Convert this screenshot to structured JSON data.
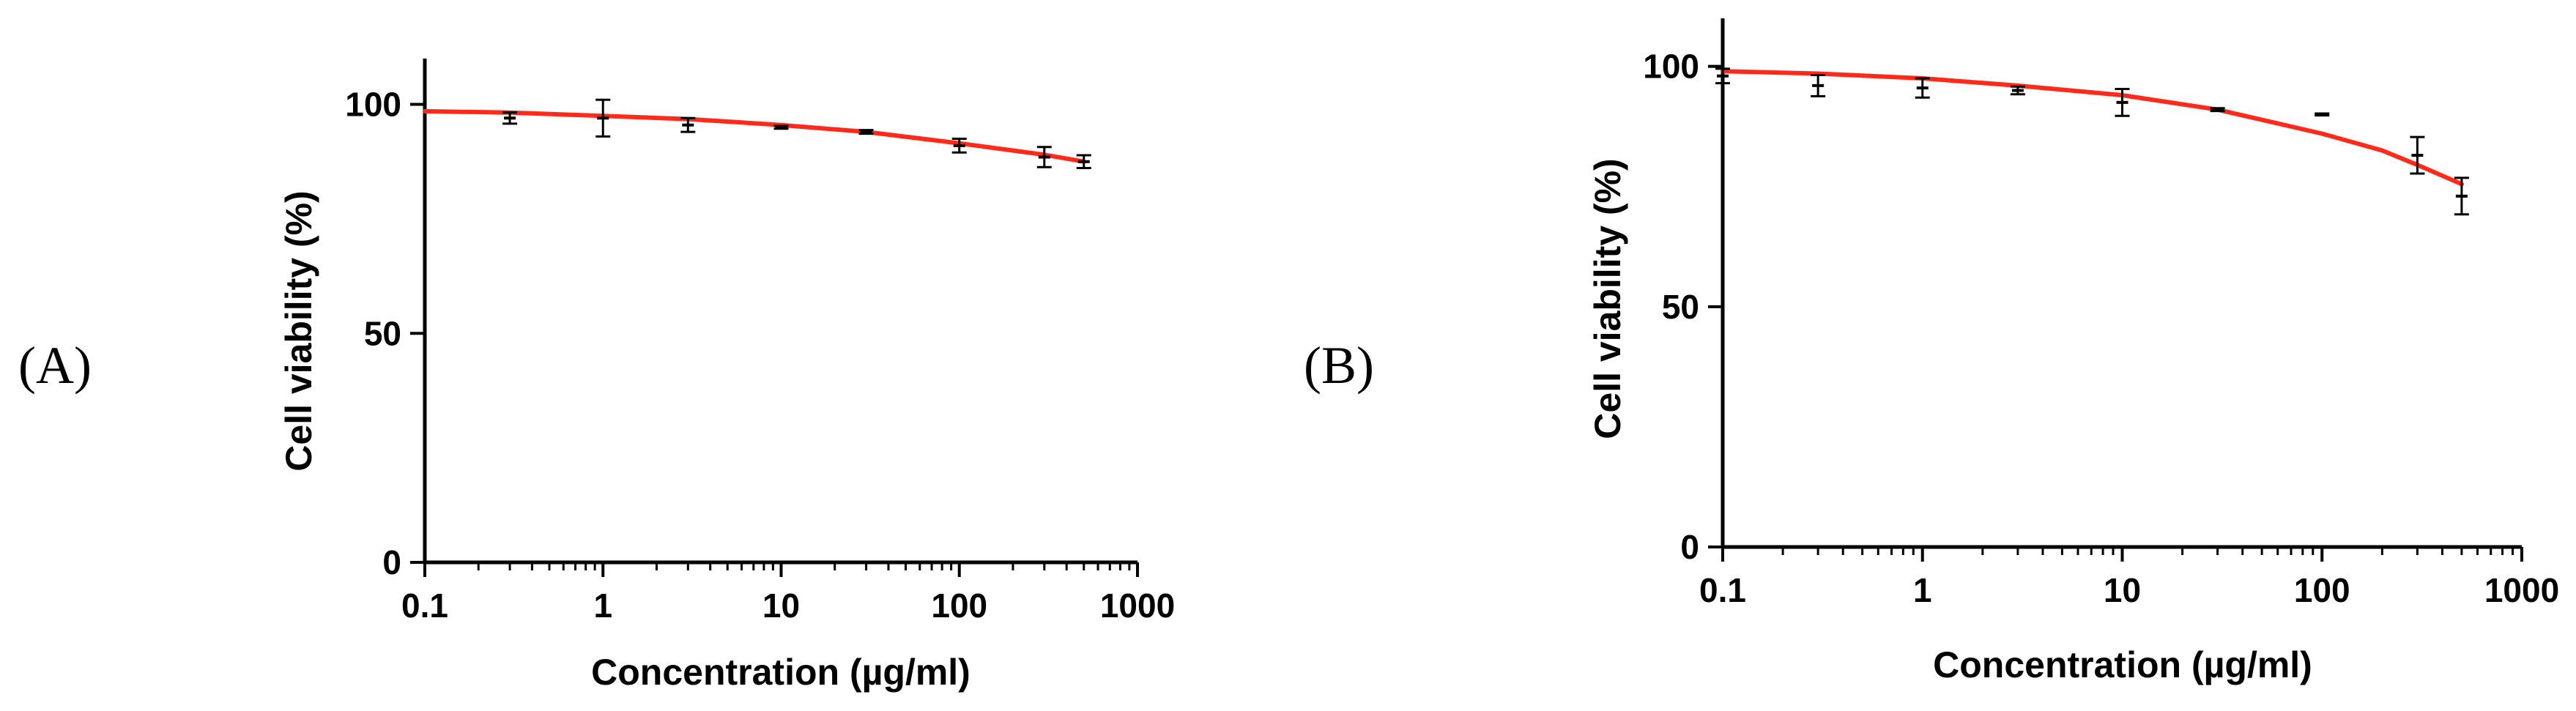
{
  "panel_labels": [
    "(A)",
    "(B)"
  ],
  "colors": {
    "axis": "#000000",
    "fit_curve": "#ff2a1a",
    "error_bar": "#000000"
  },
  "chart_data": [
    {
      "type": "scatter",
      "title": "",
      "xlabel": "Concentration (µg/ml)",
      "ylabel": "Cell viability (%)",
      "xscale": "log",
      "xlim": [
        0.1,
        1000
      ],
      "ylim": [
        0,
        110
      ],
      "xticks": [
        0.1,
        1,
        10,
        100,
        1000
      ],
      "xtick_labels": [
        "0.1",
        "1",
        "10",
        "100",
        "1000"
      ],
      "yticks": [
        0,
        50,
        100
      ],
      "ytick_labels": [
        "0",
        "50",
        "100"
      ],
      "points": [
        {
          "x": 0.3,
          "y": 97.0,
          "err": 1.2
        },
        {
          "x": 1,
          "y": 97.0,
          "err": 4.0
        },
        {
          "x": 3,
          "y": 95.5,
          "err": 1.5
        },
        {
          "x": 10,
          "y": 95.0,
          "err": 0.3
        },
        {
          "x": 30,
          "y": 94.0,
          "err": 0.4
        },
        {
          "x": 100,
          "y": 91.0,
          "err": 1.5
        },
        {
          "x": 300,
          "y": 88.5,
          "err": 2.2
        },
        {
          "x": 500,
          "y": 87.5,
          "err": 1.4
        }
      ],
      "fit_curve": {
        "x": [
          0.1,
          0.3,
          1,
          3,
          10,
          30,
          100,
          300,
          500
        ],
        "y": [
          98.5,
          98.2,
          97.5,
          96.8,
          95.5,
          94.0,
          91.5,
          89.0,
          87.5
        ]
      }
    },
    {
      "type": "scatter",
      "title": "",
      "xlabel": "Concentration (µg/ml)",
      "ylabel": "Cell viability (%)",
      "xscale": "log",
      "xlim": [
        0.1,
        1000
      ],
      "ylim": [
        0,
        110
      ],
      "xticks": [
        0.1,
        1,
        10,
        100,
        1000
      ],
      "xtick_labels": [
        "0.1",
        "1",
        "10",
        "100",
        "1000"
      ],
      "yticks": [
        0,
        50,
        100
      ],
      "ytick_labels": [
        "0",
        "50",
        "100"
      ],
      "points": [
        {
          "x": 0.1,
          "y": 98.0,
          "err": 1.5
        },
        {
          "x": 0.3,
          "y": 96.0,
          "err": 2.2
        },
        {
          "x": 1,
          "y": 95.5,
          "err": 2.0
        },
        {
          "x": 3,
          "y": 95.0,
          "err": 0.8
        },
        {
          "x": 10,
          "y": 92.5,
          "err": 2.8
        },
        {
          "x": 30,
          "y": 91.0,
          "err": 0.3
        },
        {
          "x": 100,
          "y": 90.0,
          "err": 0.2
        },
        {
          "x": 300,
          "y": 81.5,
          "err": 3.8
        },
        {
          "x": 500,
          "y": 73.0,
          "err": 3.8
        }
      ],
      "fit_curve": {
        "x": [
          0.1,
          0.3,
          1,
          3,
          10,
          30,
          100,
          200,
          300,
          500
        ],
        "y": [
          99.0,
          98.5,
          97.5,
          96.0,
          94.0,
          91.0,
          86.0,
          82.5,
          79.5,
          75.5
        ]
      }
    }
  ]
}
